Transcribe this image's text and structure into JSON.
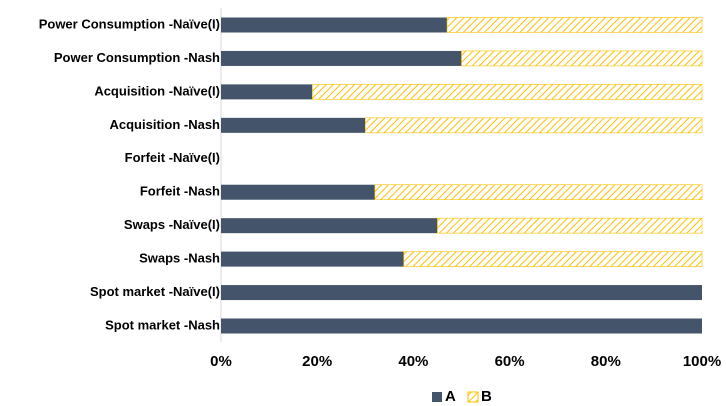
{
  "chart_data": {
    "type": "stacked_barh",
    "categories": [
      "Power Consumption -Naïve(I)",
      "Power Consumption -Nash",
      "Acquisition -Naïve(I)",
      "Acquisition -Nash",
      "Forfeit -Naïve(I)",
      "Forfeit -Nash",
      "Swaps -Naïve(I)",
      "Swaps -Nash",
      "Spot market -Naïve(I)",
      "Spot market -Nash"
    ],
    "series": [
      {
        "name": "A",
        "color": "#44546a",
        "values": [
          47,
          50,
          19,
          30,
          null,
          32,
          45,
          38,
          100,
          100
        ]
      },
      {
        "name": "B",
        "color": "#ffc000",
        "pattern": "hatch",
        "values": [
          53,
          50,
          81,
          70,
          null,
          68,
          55,
          62,
          0,
          0
        ]
      }
    ],
    "xlim": [
      0,
      100
    ],
    "xticks": [
      {
        "value": 0,
        "label": "0%"
      },
      {
        "value": 20,
        "label": "20%"
      },
      {
        "value": 40,
        "label": "40%"
      },
      {
        "value": 60,
        "label": "60%"
      },
      {
        "value": 80,
        "label": "80%"
      },
      {
        "value": 100,
        "label": "100%"
      }
    ],
    "legend": "bottom"
  }
}
